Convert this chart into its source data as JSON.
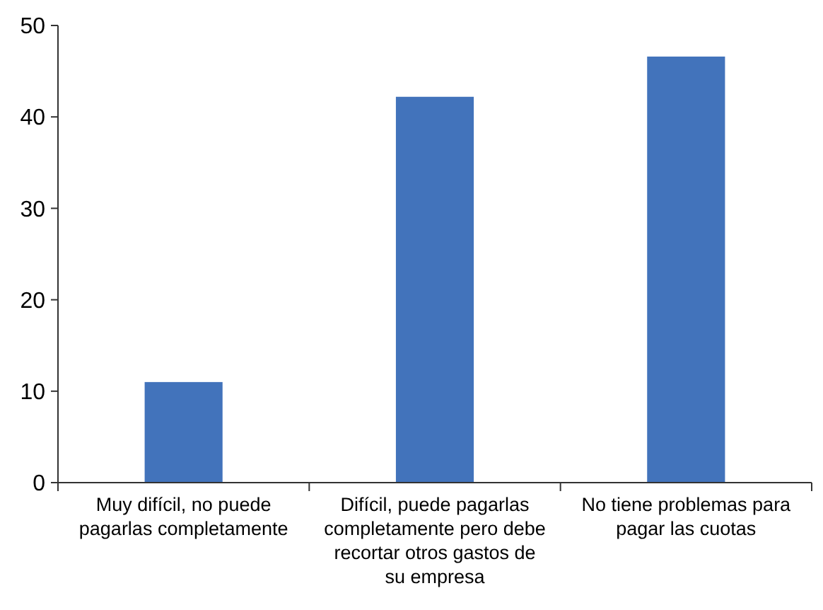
{
  "chart_data": {
    "type": "bar",
    "categories": [
      "Muy difícil, no puede pagarlas completamente",
      "Difícil, puede pagarlas completamente pero debe recortar otros gastos de su empresa",
      "No tiene problemas para pagar las cuotas"
    ],
    "values": [
      11,
      42.2,
      46.6
    ],
    "color": "#4273bb",
    "ylim": [
      0,
      50
    ],
    "yticks": [
      0,
      10,
      20,
      30,
      40,
      50
    ],
    "grid": false
  }
}
